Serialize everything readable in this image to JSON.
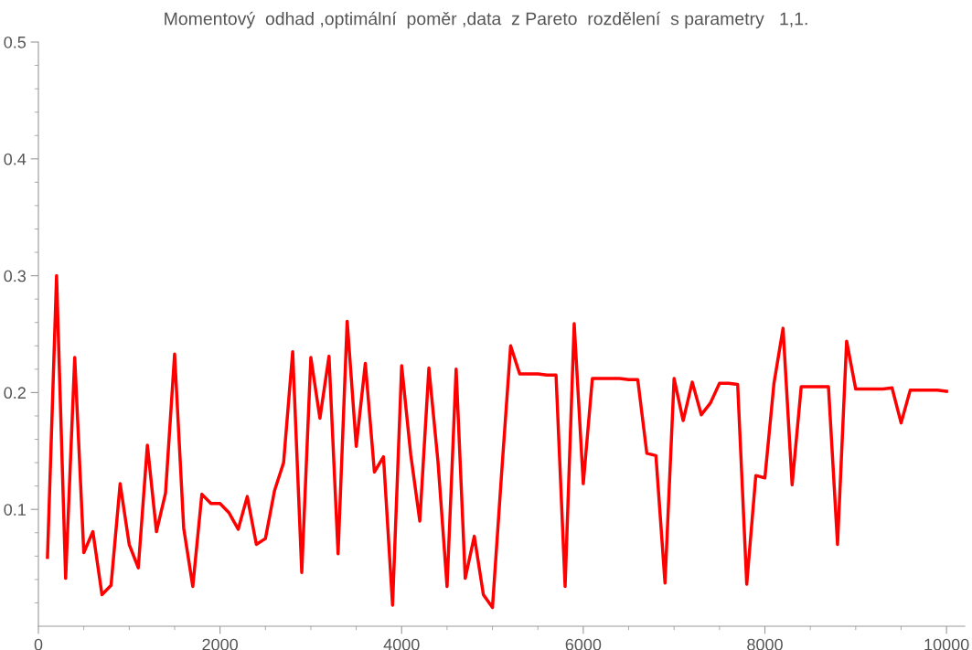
{
  "chart_data": {
    "type": "line",
    "title": "Momentový  odhad ,optimální  poměr ,data  z Pareto  rozdělení  s parametry   1,1.",
    "x": [
      100,
      200,
      300,
      400,
      500,
      600,
      700,
      800,
      900,
      1000,
      1100,
      1200,
      1300,
      1400,
      1500,
      1600,
      1700,
      1800,
      1900,
      2000,
      2100,
      2200,
      2300,
      2400,
      2500,
      2600,
      2700,
      2800,
      2900,
      3000,
      3100,
      3200,
      3300,
      3400,
      3500,
      3600,
      3700,
      3800,
      3900,
      4000,
      4100,
      4200,
      4300,
      4400,
      4500,
      4600,
      4700,
      4800,
      4900,
      5000,
      5100,
      5200,
      5300,
      5400,
      5500,
      5600,
      5700,
      5800,
      5900,
      6000,
      6100,
      6200,
      6300,
      6400,
      6500,
      6600,
      6700,
      6800,
      6900,
      7000,
      7100,
      7200,
      7300,
      7400,
      7500,
      7600,
      7700,
      7800,
      7900,
      8000,
      8100,
      8200,
      8300,
      8400,
      8500,
      8600,
      8700,
      8800,
      8900,
      9000,
      9100,
      9200,
      9300,
      9400,
      9500,
      9600,
      9700,
      9800,
      9900,
      10000
    ],
    "series": [
      {
        "color": "#ff0000",
        "values": [
          0.059,
          0.3,
          0.041,
          0.23,
          0.063,
          0.081,
          0.027,
          0.035,
          0.122,
          0.07,
          0.05,
          0.155,
          0.081,
          0.114,
          0.233,
          0.084,
          0.034,
          0.113,
          0.105,
          0.105,
          0.097,
          0.083,
          0.111,
          0.07,
          0.075,
          0.116,
          0.14,
          0.235,
          0.046,
          0.23,
          0.178,
          0.231,
          0.062,
          0.261,
          0.154,
          0.225,
          0.132,
          0.145,
          0.018,
          0.223,
          0.147,
          0.09,
          0.221,
          0.141,
          0.034,
          0.22,
          0.041,
          0.077,
          0.027,
          0.016,
          0.13,
          0.24,
          0.216,
          0.216,
          0.216,
          0.215,
          0.215,
          0.034,
          0.259,
          0.122,
          0.212,
          0.212,
          0.212,
          0.212,
          0.211,
          0.211,
          0.148,
          0.146,
          0.037,
          0.212,
          0.176,
          0.209,
          0.181,
          0.191,
          0.208,
          0.208,
          0.207,
          0.036,
          0.129,
          0.127,
          0.208,
          0.255,
          0.121,
          0.205,
          0.205,
          0.205,
          0.205,
          0.07,
          0.244,
          0.203,
          0.203,
          0.203,
          0.203,
          0.204,
          0.174,
          0.202,
          0.202,
          0.202,
          0.202,
          0.201
        ]
      }
    ],
    "xlim": [
      0,
      10200
    ],
    "ylim": [
      0,
      0.5
    ],
    "xticks": [
      0,
      {
        "value": 500,
        "label": null
      },
      2000,
      {
        "value": 1000,
        "label": null
      },
      {
        "value": 1500,
        "label": null
      },
      {
        "value": 2500,
        "label": null
      },
      {
        "value": 3000,
        "label": null
      },
      {
        "value": 3500,
        "label": null
      },
      4000,
      {
        "value": 4500,
        "label": null
      },
      {
        "value": 5000,
        "label": null
      },
      {
        "value": 5500,
        "label": null
      },
      6000,
      {
        "value": 6500,
        "label": null
      },
      {
        "value": 7000,
        "label": null
      },
      {
        "value": 7500,
        "label": null
      },
      8000,
      {
        "value": 8500,
        "label": null
      },
      {
        "value": 9000,
        "label": null
      },
      {
        "value": 9500,
        "label": null
      },
      10000
    ],
    "yticks": [
      {
        "value": 0.02,
        "label": null
      },
      {
        "value": 0.04,
        "label": null
      },
      {
        "value": 0.06,
        "label": null
      },
      {
        "value": 0.08,
        "label": null
      },
      0.1,
      {
        "value": 0.12,
        "label": null
      },
      {
        "value": 0.14,
        "label": null
      },
      {
        "value": 0.16,
        "label": null
      },
      {
        "value": 0.18,
        "label": null
      },
      0.2,
      {
        "value": 0.22,
        "label": null
      },
      {
        "value": 0.24,
        "label": null
      },
      {
        "value": 0.26,
        "label": null
      },
      {
        "value": 0.28,
        "label": null
      },
      0.3,
      {
        "value": 0.32,
        "label": null
      },
      {
        "value": 0.34,
        "label": null
      },
      {
        "value": 0.36,
        "label": null
      },
      {
        "value": 0.38,
        "label": null
      },
      0.4,
      {
        "value": 0.42,
        "label": null
      },
      {
        "value": 0.44,
        "label": null
      },
      {
        "value": 0.46,
        "label": null
      },
      {
        "value": 0.48,
        "label": null
      },
      0.5
    ],
    "grid": false,
    "legend": false
  }
}
